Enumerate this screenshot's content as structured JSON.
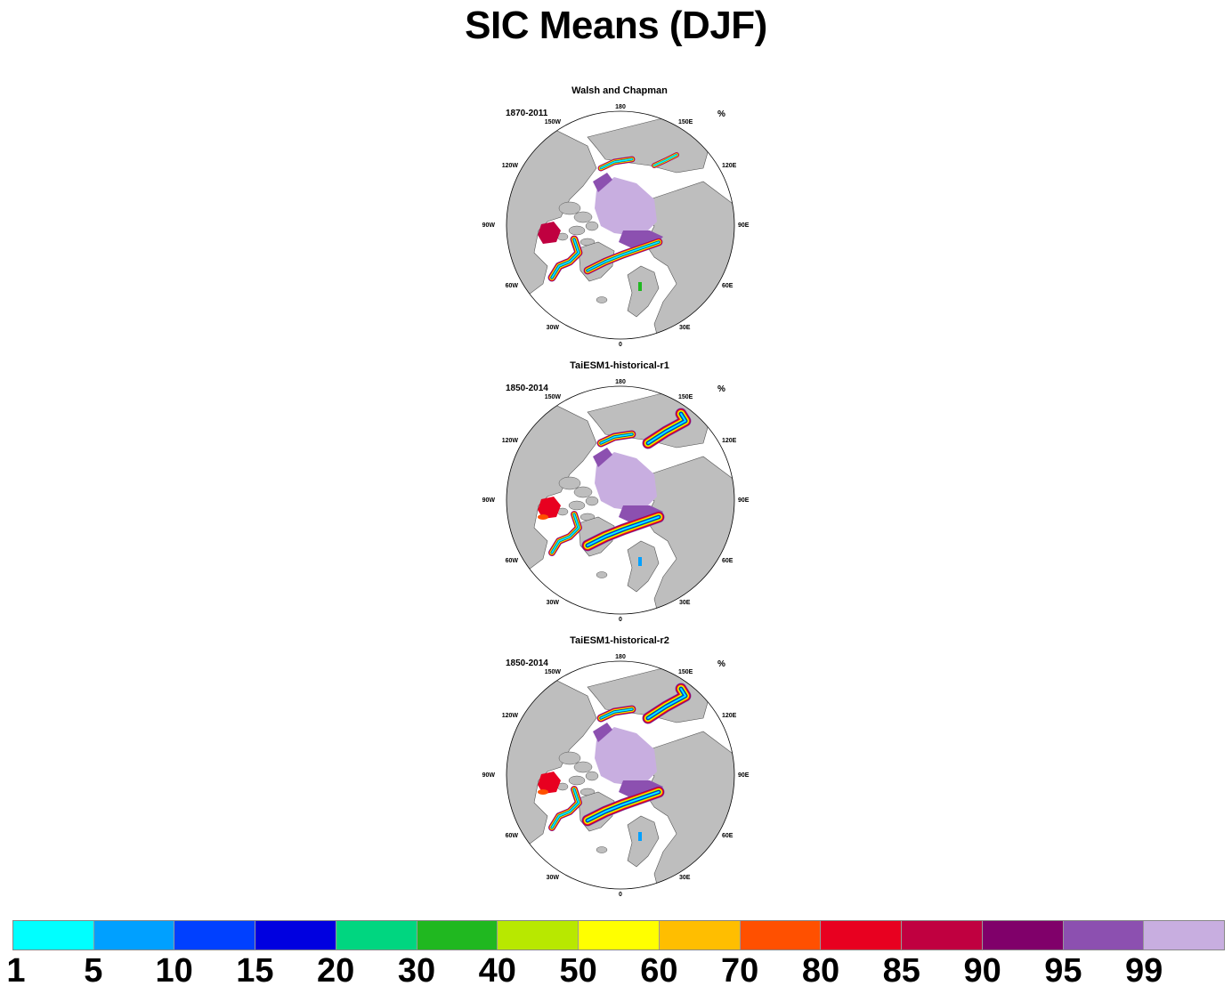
{
  "title": "SIC Means (DJF)",
  "panels": [
    {
      "title": "Walsh and Chapman",
      "period": "1870-2011",
      "units": "%"
    },
    {
      "title": "TaiESM1-historical-r1",
      "period": "1850-2014",
      "units": "%"
    },
    {
      "title": "TaiESM1-historical-r2",
      "period": "1850-2014",
      "units": "%"
    }
  ],
  "longitude_labels": {
    "top": "180",
    "bottom": "0",
    "left": "90W",
    "right": "90E",
    "upper_left_1": "150W",
    "upper_left_2": "120W",
    "lower_left_1": "60W",
    "lower_left_2": "30W",
    "upper_right_1": "150E",
    "upper_right_2": "120E",
    "lower_right_1": "60E",
    "lower_right_2": "30E"
  },
  "map_colors": {
    "land": "#bebebe",
    "ocean": "#ffffff",
    "coast": "#555555"
  },
  "colorbar": {
    "colors": [
      "#00ffff",
      "#00a0ff",
      "#0040ff",
      "#0000e0",
      "#00d680",
      "#20b820",
      "#b8e800",
      "#ffff00",
      "#ffbe00",
      "#ff5000",
      "#e80020",
      "#c00040",
      "#80006a",
      "#8c50b0",
      "#c8aee0"
    ],
    "labels": [
      "1",
      "5",
      "10",
      "15",
      "20",
      "30",
      "40",
      "50",
      "60",
      "70",
      "80",
      "85",
      "90",
      "95",
      "99"
    ]
  }
}
